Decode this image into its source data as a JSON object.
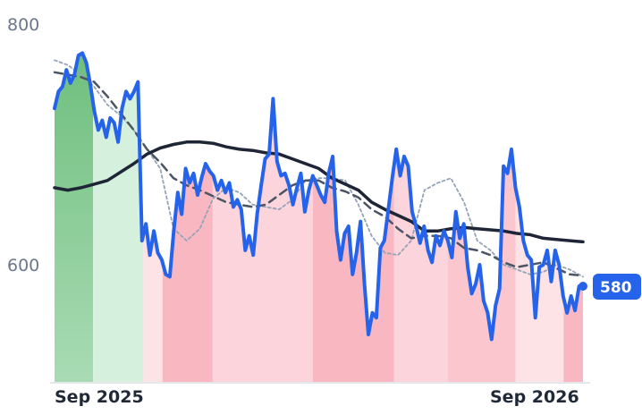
{
  "chart_data": {
    "type": "area",
    "x_start": "2025-08",
    "x_ticks": [
      {
        "label": "Sep 2025",
        "month": 1
      },
      {
        "label": "Sep 2026",
        "month": 13
      }
    ],
    "x_range_months": [
      0,
      14
    ],
    "y_ticks": [
      800,
      600
    ],
    "ylim": [
      505,
      810
    ],
    "grid": false,
    "last_value": 580,
    "last_value_label": "580",
    "series": [
      {
        "role": "price",
        "color": "#2563eb",
        "values": [
          730,
          744,
          748,
          762,
          751,
          758,
          774,
          776,
          768,
          750,
          728,
          712,
          720,
          706,
          722,
          718,
          702,
          730,
          744,
          738,
          744,
          752,
          620,
          634,
          608,
          628,
          610,
          604,
          592,
          590,
          628,
          660,
          642,
          680,
          668,
          676,
          658,
          672,
          684,
          678,
          674,
          662,
          670,
          660,
          668,
          648,
          654,
          646,
          612,
          624,
          608,
          642,
          666,
          688,
          692,
          738,
          686,
          674,
          676,
          666,
          650,
          664,
          676,
          644,
          662,
          674,
          666,
          658,
          652,
          676,
          690,
          628,
          604,
          626,
          632,
          592,
          610,
          636,
          584,
          542,
          560,
          556,
          614,
          620,
          646,
          672,
          696,
          674,
          690,
          682,
          644,
          632,
          618,
          632,
          612,
          602,
          624,
          616,
          628,
          620,
          606,
          644,
          622,
          634,
          598,
          576,
          584,
          600,
          570,
          560,
          538,
          566,
          580,
          682,
          676,
          696,
          664,
          648,
          620,
          608,
          604,
          556,
          598,
          600,
          612,
          586,
          612,
          600,
          574,
          560,
          574,
          562,
          582,
          580
        ]
      },
      {
        "role": "long moving average",
        "color": "#1e2536",
        "values": [
          664,
          662,
          664,
          667,
          670,
          677,
          684,
          692,
          697,
          700,
          702,
          702,
          701,
          698,
          696,
          695,
          693,
          692,
          688,
          684,
          680,
          672,
          667,
          662,
          652,
          646,
          641,
          636,
          628,
          628,
          630,
          631,
          630,
          629,
          628,
          626,
          625,
          622,
          621,
          620,
          619
        ]
      },
      {
        "role": "medium moving average",
        "color": "#4b5563",
        "values": [
          760,
          758,
          756,
          752,
          740,
          726,
          712,
          696,
          685,
          672,
          666,
          662,
          657,
          652,
          650,
          648,
          650,
          658,
          666,
          670,
          670,
          664,
          661,
          656,
          646,
          640,
          630,
          622,
          624,
          624,
          622,
          614,
          612,
          608,
          602,
          598,
          600,
          602,
          597,
          592,
          591
        ]
      },
      {
        "role": "short moving average",
        "color": "#94a3b8",
        "values": [
          770,
          766,
          758,
          748,
          733,
          724,
          712,
          696,
          680,
          630,
          620,
          630,
          655,
          664,
          660,
          650,
          648,
          646,
          654,
          670,
          672,
          672,
          670,
          650,
          624,
          610,
          608,
          620,
          662,
          668,
          672,
          652,
          620,
          612,
          600,
          596,
          592,
          594,
          600,
          596,
          590
        ]
      }
    ],
    "band_colors": [
      "#8fcf9c",
      "#d6f0de",
      "#fde2e6",
      "#f8b7c1",
      "#fbd5db",
      "#fbc6ce"
    ],
    "bands": [
      {
        "from": 0,
        "to": 1,
        "tone": 0
      },
      {
        "from": 1,
        "to": 2.3,
        "tone": 1
      },
      {
        "from": 2.3,
        "to": 2.8,
        "tone": 2
      },
      {
        "from": 2.8,
        "to": 4.1,
        "tone": 3
      },
      {
        "from": 4.1,
        "to": 6.7,
        "tone": 4
      },
      {
        "from": 6.7,
        "to": 8.8,
        "tone": 3
      },
      {
        "from": 8.8,
        "to": 10.2,
        "tone": 4
      },
      {
        "from": 10.2,
        "to": 11.95,
        "tone": 5
      },
      {
        "from": 11.95,
        "to": 13.2,
        "tone": 2
      },
      {
        "from": 13.2,
        "to": 13.7,
        "tone": 3
      }
    ]
  }
}
